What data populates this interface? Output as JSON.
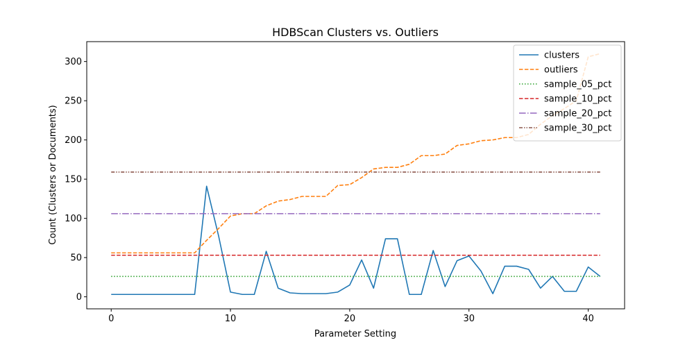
{
  "chart_data": {
    "type": "line",
    "title": "HDBScan Clusters vs. Outliers",
    "xlabel": "Parameter Setting",
    "ylabel": "Count (Clusters or Documents)",
    "xlim": [
      -2.05,
      43.05
    ],
    "ylim": [
      -15.35,
      325.35
    ],
    "xticks": [
      0,
      10,
      20,
      30,
      40
    ],
    "yticks": [
      0,
      50,
      100,
      150,
      200,
      250,
      300
    ],
    "grid": false,
    "legend": "top-right",
    "x": [
      0,
      1,
      2,
      3,
      4,
      5,
      6,
      7,
      8,
      9,
      10,
      11,
      12,
      13,
      14,
      15,
      16,
      17,
      18,
      19,
      20,
      21,
      22,
      23,
      24,
      25,
      26,
      27,
      28,
      29,
      30,
      31,
      32,
      33,
      34,
      35,
      36,
      37,
      38,
      39,
      40,
      41
    ],
    "series": [
      {
        "name": "clusters",
        "color": "#1f77b4",
        "style": "solid",
        "values": [
          3,
          3,
          3,
          3,
          3,
          3,
          3,
          3,
          141,
          78,
          6,
          3,
          3,
          58,
          11,
          5,
          4,
          4,
          4,
          6,
          15,
          47,
          11,
          74,
          74,
          3,
          3,
          59,
          13,
          46,
          52,
          33,
          4,
          39,
          39,
          35,
          11,
          26,
          7,
          7,
          38,
          26
        ]
      },
      {
        "name": "outliers",
        "color": "#ff7f0e",
        "style": "dashed",
        "values": [
          56,
          56,
          56,
          56,
          56,
          56,
          56,
          56,
          72,
          87,
          103,
          106,
          106,
          116,
          122,
          124,
          128,
          128,
          128,
          142,
          143,
          152,
          163,
          165,
          165,
          169,
          180,
          180,
          182,
          193,
          195,
          199,
          200,
          203,
          203,
          207,
          220,
          231,
          240,
          250,
          306,
          310
        ]
      },
      {
        "name": "sample_05_pct",
        "color": "#2ca02c",
        "style": "dotted",
        "values": [
          26,
          26,
          26,
          26,
          26,
          26,
          26,
          26,
          26,
          26,
          26,
          26,
          26,
          26,
          26,
          26,
          26,
          26,
          26,
          26,
          26,
          26,
          26,
          26,
          26,
          26,
          26,
          26,
          26,
          26,
          26,
          26,
          26,
          26,
          26,
          26,
          26,
          26,
          26,
          26,
          26,
          26
        ]
      },
      {
        "name": "sample_10_pct",
        "color": "#d62728",
        "style": "dashed",
        "values": [
          53,
          53,
          53,
          53,
          53,
          53,
          53,
          53,
          53,
          53,
          53,
          53,
          53,
          53,
          53,
          53,
          53,
          53,
          53,
          53,
          53,
          53,
          53,
          53,
          53,
          53,
          53,
          53,
          53,
          53,
          53,
          53,
          53,
          53,
          53,
          53,
          53,
          53,
          53,
          53,
          53,
          53
        ]
      },
      {
        "name": "sample_20_pct",
        "color": "#9467bd",
        "style": "dashdot",
        "values": [
          106,
          106,
          106,
          106,
          106,
          106,
          106,
          106,
          106,
          106,
          106,
          106,
          106,
          106,
          106,
          106,
          106,
          106,
          106,
          106,
          106,
          106,
          106,
          106,
          106,
          106,
          106,
          106,
          106,
          106,
          106,
          106,
          106,
          106,
          106,
          106,
          106,
          106,
          106,
          106,
          106,
          106
        ]
      },
      {
        "name": "sample_30_pct",
        "color": "#8c564b",
        "style": "dashdotdot",
        "values": [
          159,
          159,
          159,
          159,
          159,
          159,
          159,
          159,
          159,
          159,
          159,
          159,
          159,
          159,
          159,
          159,
          159,
          159,
          159,
          159,
          159,
          159,
          159,
          159,
          159,
          159,
          159,
          159,
          159,
          159,
          159,
          159,
          159,
          159,
          159,
          159,
          159,
          159,
          159,
          159,
          159,
          159
        ]
      }
    ]
  }
}
